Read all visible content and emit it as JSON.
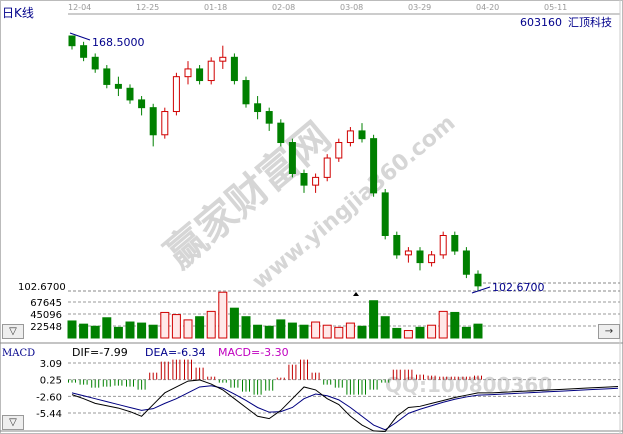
{
  "header": {
    "period_label": "日K线",
    "stock_code": "603160",
    "stock_name": "汇顶科技"
  },
  "buttons": {
    "collapse_volume": "▽",
    "collapse_macd": "▽",
    "scroll_right": "→"
  },
  "watermark": {
    "brand": "赢家财富网",
    "url": "www.yingjia360.com",
    "qq": "QQ:100800360"
  },
  "chart_data": [
    {
      "type": "candlestick",
      "date_ticks": [
        "12-04",
        "12-25",
        "01-18",
        "02-08",
        "03-08",
        "03-29",
        "04-20",
        "05-11"
      ],
      "ylim": [
        102.67,
        168.5
      ],
      "y_tick_label": "102.6700",
      "annotations": {
        "high": "168.5000",
        "low": "102.6700"
      },
      "colors": {
        "up": "#d00000",
        "down": "#008000"
      },
      "ohlc": [
        [
          168.5,
          168.5,
          165,
          166
        ],
        [
          166,
          167,
          162,
          163
        ],
        [
          163,
          164,
          159,
          160
        ],
        [
          160,
          161,
          155,
          156
        ],
        [
          156,
          158,
          153,
          155
        ],
        [
          155,
          156,
          151,
          152
        ],
        [
          152,
          153,
          148,
          150
        ],
        [
          150,
          151,
          140,
          143
        ],
        [
          143,
          150,
          142,
          149
        ],
        [
          149,
          159,
          148,
          158
        ],
        [
          158,
          162,
          156,
          160
        ],
        [
          160,
          161,
          156,
          157
        ],
        [
          157,
          163,
          156,
          162
        ],
        [
          162,
          166,
          160,
          163
        ],
        [
          163,
          164,
          156,
          157
        ],
        [
          157,
          158,
          150,
          151
        ],
        [
          151,
          153,
          147,
          149
        ],
        [
          149,
          150,
          144,
          146
        ],
        [
          146,
          147,
          140,
          141
        ],
        [
          141,
          142,
          132,
          133
        ],
        [
          133,
          134,
          128,
          130
        ],
        [
          130,
          133,
          128,
          132
        ],
        [
          132,
          138,
          131,
          137
        ],
        [
          137,
          142,
          136,
          141
        ],
        [
          141,
          145,
          140,
          144
        ],
        [
          144,
          146,
          141,
          142
        ],
        [
          142,
          143,
          127,
          128
        ],
        [
          128,
          129,
          116,
          117
        ],
        [
          117,
          118,
          111,
          112
        ],
        [
          112,
          114,
          110,
          113
        ],
        [
          113,
          114,
          108,
          110
        ],
        [
          110,
          113,
          109,
          112
        ],
        [
          112,
          118,
          111,
          117
        ],
        [
          117,
          118,
          112,
          113
        ],
        [
          113,
          114,
          106,
          107
        ],
        [
          107,
          108,
          102.67,
          104
        ]
      ]
    },
    {
      "type": "bar",
      "name": "volume",
      "y_ticks": [
        "22548",
        "45096",
        "67645"
      ],
      "ylim": [
        0,
        86400
      ],
      "values": [
        32000,
        26000,
        22000,
        38000,
        20000,
        30000,
        28000,
        24000,
        48000,
        44000,
        34000,
        40000,
        50000,
        86000,
        56000,
        40000,
        24000,
        22000,
        34000,
        28000,
        24000,
        30000,
        24000,
        20000,
        28000,
        22000,
        70000,
        40000,
        18000,
        14000,
        20000,
        24000,
        50000,
        48000,
        20000,
        26000
      ]
    },
    {
      "type": "line",
      "name": "MACD",
      "legend": {
        "title": "MACD",
        "dif": "DIF=-7.99",
        "dea": "DEA=-6.34",
        "macd": "MACD=-3.30"
      },
      "y_ticks": [
        "3.09",
        "0.25",
        "-2.60",
        "-5.44"
      ],
      "ylim": [
        -9,
        4
      ],
      "colors": {
        "dif": "#000000",
        "dea": "#000080",
        "hist_up": "#c00000",
        "hist_down": "#008000",
        "macd_label": "#c000c0"
      },
      "dif": [
        -2.3,
        -3,
        -3.8,
        -4.2,
        -4.6,
        -5.2,
        -6,
        -4,
        -2,
        -1,
        0,
        0.2,
        -0.5,
        -1.5,
        -3,
        -4.5,
        -6,
        -6.4,
        -5,
        -3,
        -1,
        -1.5,
        -3,
        -4,
        -6,
        -7.5,
        -8.5,
        -8.6,
        -6,
        -4.5,
        -4.3,
        -3.8,
        -3.3,
        -2.8,
        -2.4,
        -2.0
      ],
      "dea": [
        -2.0,
        -2.5,
        -3,
        -3.5,
        -4,
        -4.5,
        -5,
        -4.7,
        -3.8,
        -3,
        -2,
        -1,
        -0.8,
        -1.2,
        -2.2,
        -3.3,
        -4.5,
        -5.3,
        -5.2,
        -4.5,
        -3,
        -2.2,
        -2.5,
        -3.2,
        -4.5,
        -6,
        -7.5,
        -8.3,
        -7,
        -5.5,
        -4.8,
        -4.2,
        -3.6,
        -3.1,
        -2.7,
        -2.4
      ],
      "macd": [
        -0.6,
        -1,
        -1.6,
        -1.4,
        -1.2,
        -1.4,
        -2,
        1.4,
        3.6,
        4,
        4,
        2.4,
        0.6,
        -0.6,
        -1.6,
        -2.4,
        -3,
        -2.2,
        0.4,
        3,
        4,
        1.4,
        -1,
        -1.6,
        -3,
        -3,
        -2,
        -0.6,
        2,
        2,
        1,
        0.8,
        0.6,
        0.6,
        0.6,
        0.8
      ]
    }
  ]
}
